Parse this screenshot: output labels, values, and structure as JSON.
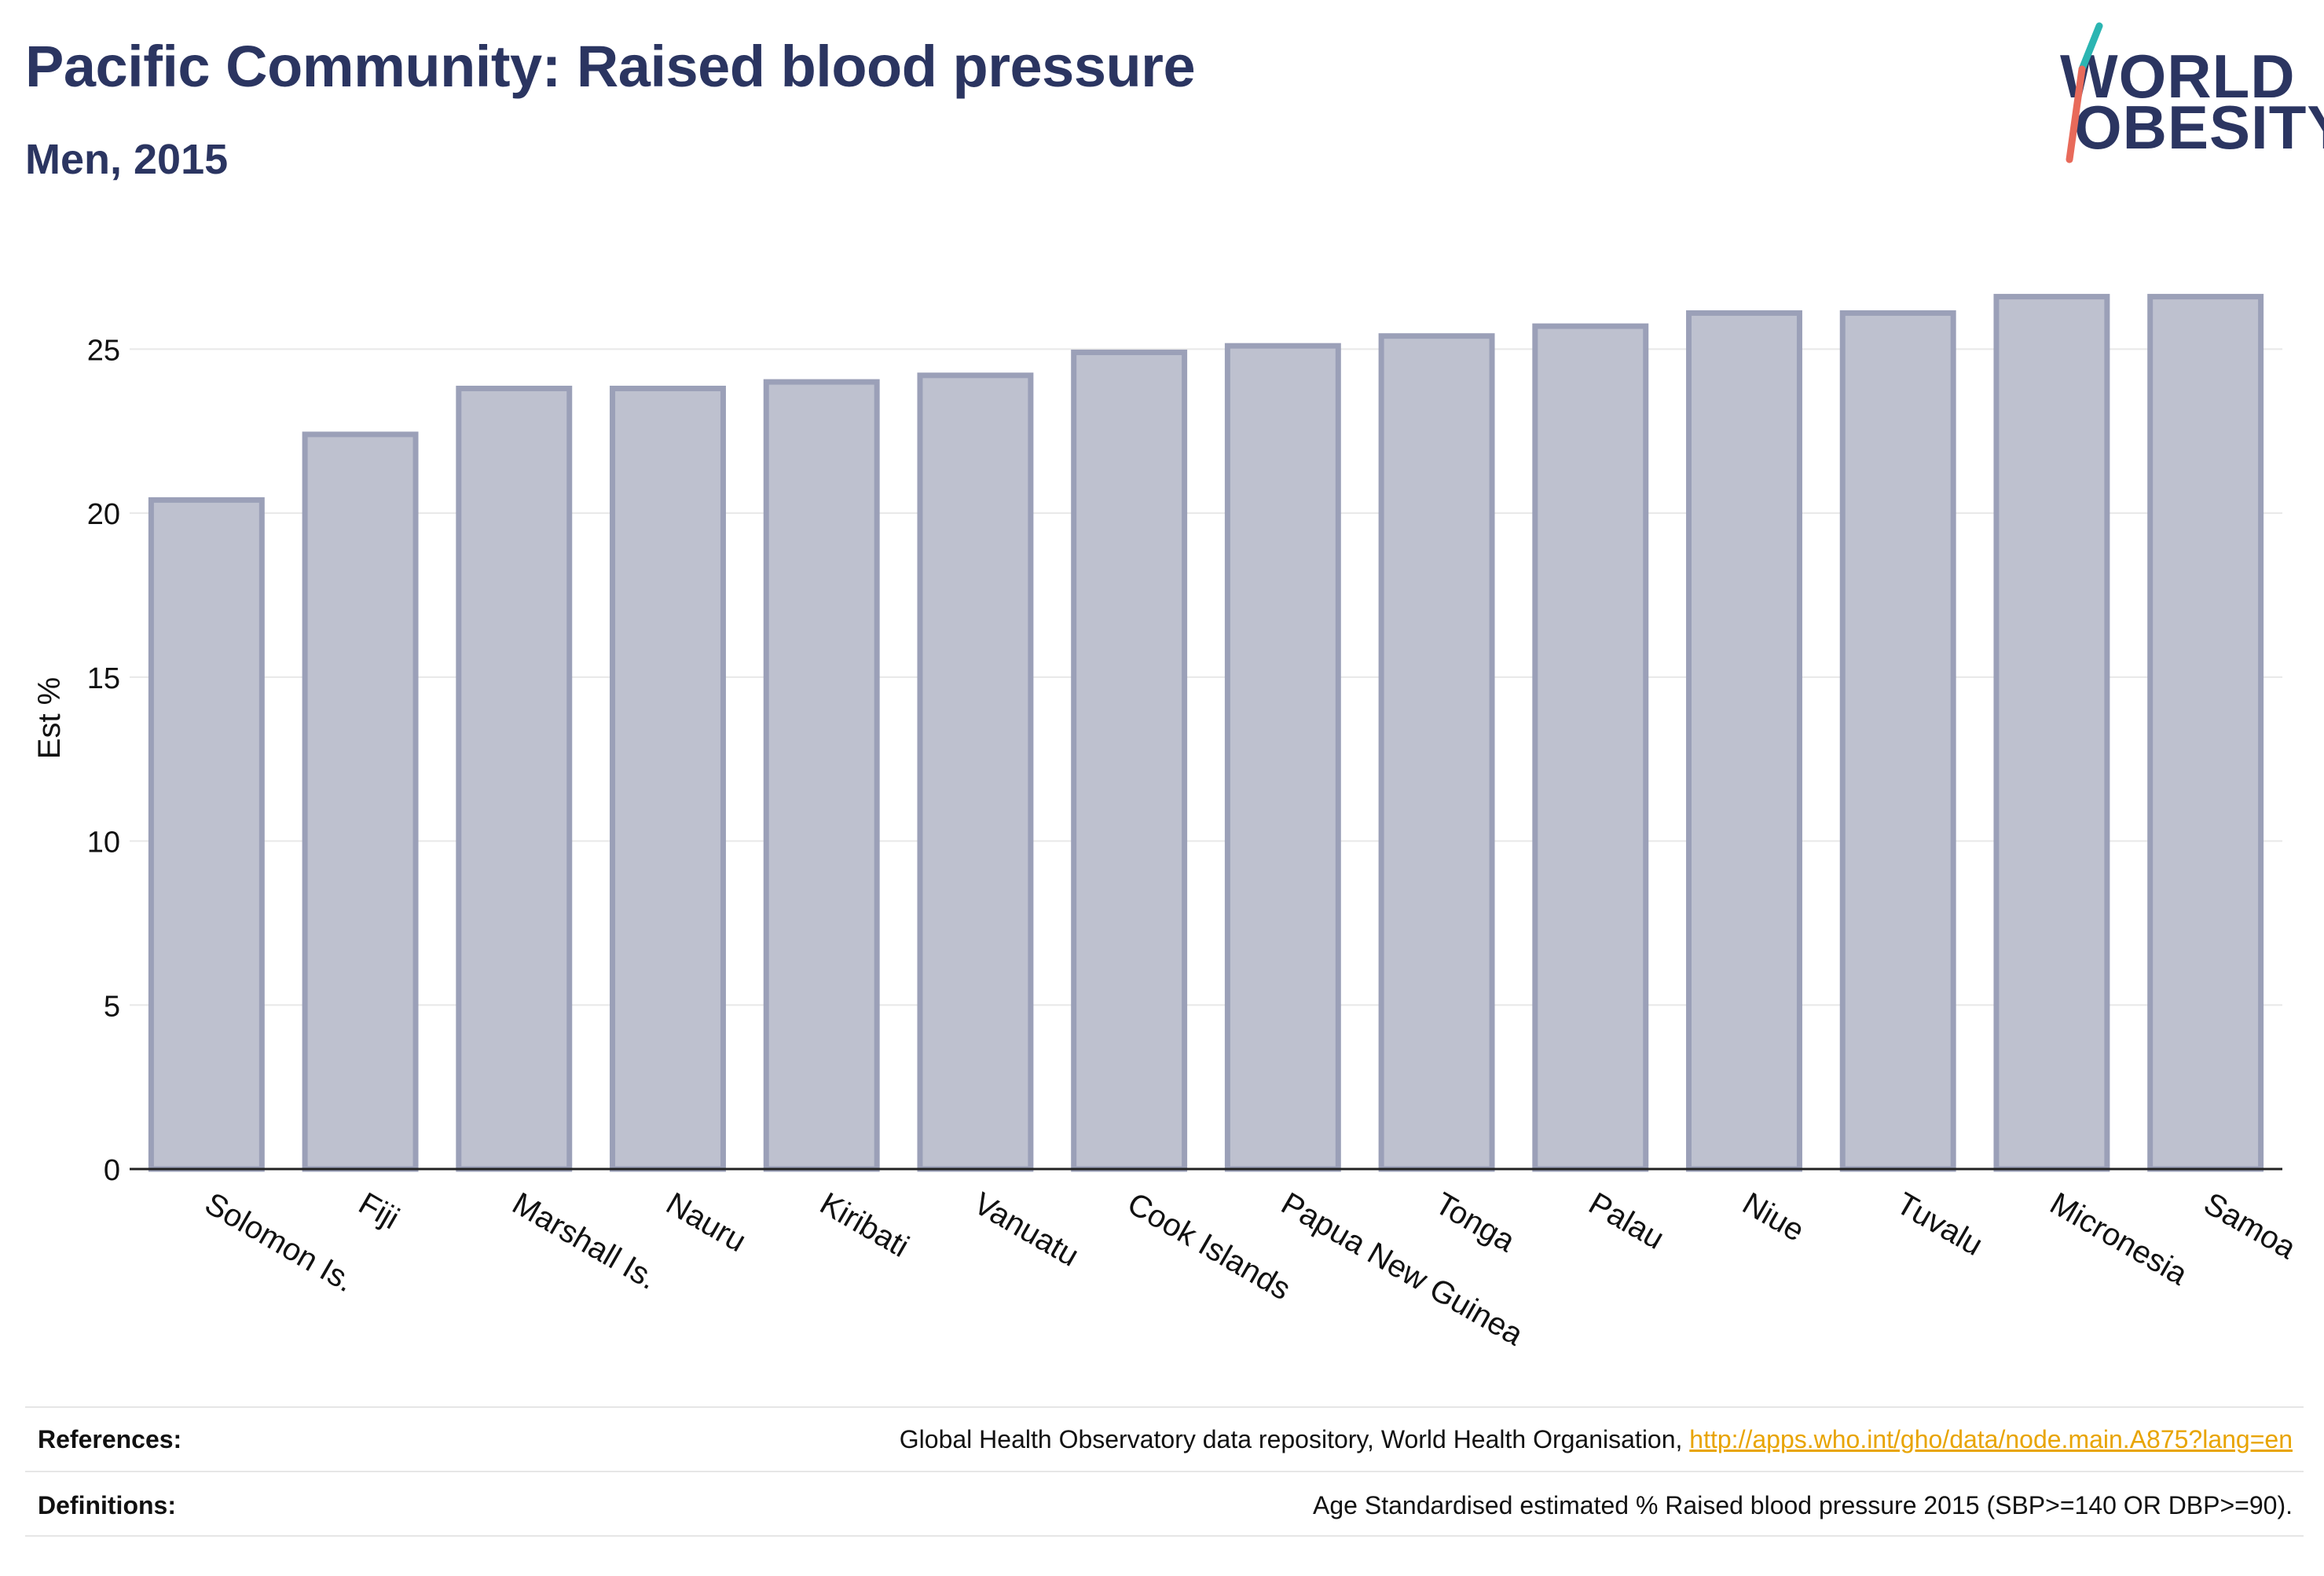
{
  "header": {
    "title": "Pacific Community: Raised blood pressure",
    "subtitle": "Men, 2015"
  },
  "logo": {
    "line1": "WORLD",
    "line2": "OBESITY",
    "colors": {
      "text": "#2b3561",
      "slash_top": "#2bb5b2",
      "slash_bottom": "#e86a5a"
    }
  },
  "chart_data": {
    "type": "bar",
    "categories": [
      "Solomon Is.",
      "Fiji",
      "Marshall Is.",
      "Nauru",
      "Kiribati",
      "Vanuatu",
      "Cook Islands",
      "Papua New Guinea",
      "Tonga",
      "Palau",
      "Niue",
      "Tuvalu",
      "Micronesia",
      "Samoa"
    ],
    "values": [
      20.4,
      22.4,
      23.8,
      23.8,
      24.0,
      24.2,
      24.9,
      25.1,
      25.4,
      25.7,
      26.1,
      26.1,
      26.6,
      26.6
    ],
    "ylabel": "Est %",
    "xlabel": "",
    "ylim": [
      0,
      27.5
    ],
    "yticks": [
      0,
      5,
      10,
      15,
      20,
      25
    ],
    "grid": true,
    "colors": {
      "bar_fill": "#bec1cf",
      "bar_stroke": "#9ba0b8",
      "axis": "#222222",
      "grid": "#e8e8e8"
    }
  },
  "footer": {
    "references_label": "References:",
    "references_text": "Global Health Observatory data repository, World Health Organisation,",
    "references_link": "http://apps.who.int/gho/data/node.main.A875?lang=en",
    "definitions_label": "Definitions:",
    "definitions_text": "Age Standardised estimated % Raised blood pressure 2015 (SBP>=140 OR DBP>=90)."
  }
}
